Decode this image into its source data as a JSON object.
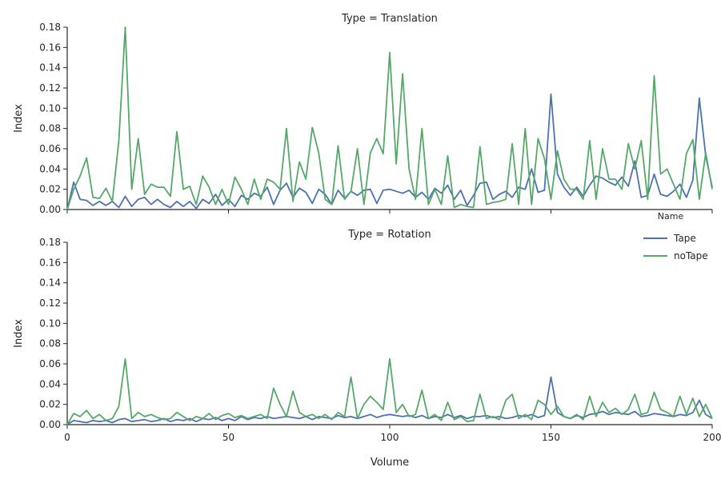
{
  "chart_data": {
    "type": "line",
    "xlabel": "Volume",
    "ylabel": "Index",
    "xlim": [
      0,
      200
    ],
    "ylim": [
      0,
      0.18
    ],
    "xticks": [
      "0",
      "50",
      "100",
      "150",
      "200"
    ],
    "yticks": [
      "0.00",
      "0.02",
      "0.04",
      "0.06",
      "0.08",
      "0.10",
      "0.12",
      "0.14",
      "0.16",
      "0.18"
    ],
    "legend": {
      "title": "Name",
      "placement": "right",
      "entries": [
        "Tape",
        "noTape"
      ]
    },
    "colors": {
      "Tape": "#4c72b0",
      "noTape": "#55a868"
    },
    "x": [
      0,
      2,
      4,
      6,
      8,
      10,
      12,
      14,
      16,
      18,
      20,
      22,
      24,
      26,
      28,
      30,
      32,
      34,
      36,
      38,
      40,
      42,
      44,
      46,
      48,
      50,
      52,
      54,
      56,
      58,
      60,
      62,
      64,
      66,
      68,
      70,
      72,
      74,
      76,
      78,
      80,
      82,
      84,
      86,
      88,
      90,
      92,
      94,
      96,
      98,
      100,
      102,
      104,
      106,
      108,
      110,
      112,
      114,
      116,
      118,
      120,
      122,
      124,
      126,
      128,
      130,
      132,
      134,
      136,
      138,
      140,
      142,
      144,
      146,
      148,
      150,
      152,
      154,
      156,
      158,
      160,
      162,
      164,
      166,
      168,
      170,
      172,
      174,
      176,
      178,
      180,
      182,
      184,
      186,
      188,
      190,
      192,
      194,
      196,
      198,
      200
    ],
    "panels": [
      {
        "title": "Type = Translation",
        "series": [
          {
            "name": "Tape",
            "values": [
              0.0,
              0.027,
              0.01,
              0.009,
              0.004,
              0.008,
              0.004,
              0.008,
              0.002,
              0.013,
              0.003,
              0.01,
              0.012,
              0.005,
              0.01,
              0.005,
              0.002,
              0.008,
              0.003,
              0.008,
              0.001,
              0.01,
              0.006,
              0.015,
              0.004,
              0.01,
              0.003,
              0.014,
              0.01,
              0.016,
              0.013,
              0.022,
              0.005,
              0.019,
              0.026,
              0.012,
              0.021,
              0.017,
              0.006,
              0.02,
              0.015,
              0.005,
              0.019,
              0.011,
              0.018,
              0.014,
              0.019,
              0.02,
              0.006,
              0.019,
              0.02,
              0.018,
              0.016,
              0.019,
              0.012,
              0.017,
              0.01,
              0.021,
              0.016,
              0.024,
              0.01,
              0.019,
              0.004,
              0.014,
              0.026,
              0.027,
              0.01,
              0.015,
              0.018,
              0.012,
              0.022,
              0.02,
              0.04,
              0.017,
              0.019,
              0.114,
              0.035,
              0.022,
              0.014,
              0.022,
              0.013,
              0.024,
              0.033,
              0.031,
              0.027,
              0.024,
              0.032,
              0.023,
              0.048,
              0.012,
              0.014,
              0.035,
              0.015,
              0.013,
              0.018,
              0.025,
              0.012,
              0.029,
              0.11,
              0.053,
              0.022
            ]
          },
          {
            "name": "noTape",
            "values": [
              0.0,
              0.02,
              0.033,
              0.051,
              0.012,
              0.011,
              0.021,
              0.008,
              0.068,
              0.18,
              0.02,
              0.07,
              0.015,
              0.025,
              0.022,
              0.022,
              0.013,
              0.077,
              0.02,
              0.023,
              0.005,
              0.033,
              0.022,
              0.005,
              0.02,
              0.005,
              0.032,
              0.02,
              0.005,
              0.03,
              0.01,
              0.03,
              0.027,
              0.02,
              0.08,
              0.008,
              0.047,
              0.03,
              0.081,
              0.056,
              0.01,
              0.005,
              0.063,
              0.01,
              0.018,
              0.06,
              0.005,
              0.056,
              0.07,
              0.055,
              0.155,
              0.045,
              0.134,
              0.04,
              0.01,
              0.08,
              0.005,
              0.02,
              0.005,
              0.053,
              0.002,
              0.005,
              0.003,
              0.002,
              0.062,
              0.005,
              0.007,
              0.008,
              0.01,
              0.065,
              0.005,
              0.08,
              0.005,
              0.07,
              0.05,
              0.01,
              0.058,
              0.03,
              0.02,
              0.02,
              0.01,
              0.068,
              0.01,
              0.06,
              0.03,
              0.03,
              0.02,
              0.065,
              0.04,
              0.068,
              0.01,
              0.132,
              0.035,
              0.04,
              0.025,
              0.01,
              0.055,
              0.069,
              0.01,
              0.056,
              0.02
            ]
          }
        ]
      },
      {
        "title": "Type = Rotation",
        "series": [
          {
            "name": "Tape",
            "values": [
              0.0,
              0.004,
              0.003,
              0.002,
              0.004,
              0.003,
              0.004,
              0.002,
              0.005,
              0.006,
              0.003,
              0.004,
              0.005,
              0.003,
              0.004,
              0.006,
              0.003,
              0.005,
              0.004,
              0.006,
              0.003,
              0.006,
              0.005,
              0.007,
              0.004,
              0.006,
              0.004,
              0.008,
              0.005,
              0.007,
              0.006,
              0.008,
              0.006,
              0.007,
              0.008,
              0.007,
              0.006,
              0.008,
              0.005,
              0.008,
              0.007,
              0.006,
              0.009,
              0.007,
              0.008,
              0.006,
              0.008,
              0.01,
              0.007,
              0.009,
              0.01,
              0.009,
              0.008,
              0.009,
              0.007,
              0.009,
              0.006,
              0.008,
              0.007,
              0.01,
              0.007,
              0.009,
              0.006,
              0.008,
              0.008,
              0.009,
              0.007,
              0.008,
              0.006,
              0.007,
              0.009,
              0.008,
              0.01,
              0.007,
              0.009,
              0.047,
              0.012,
              0.008,
              0.006,
              0.009,
              0.007,
              0.01,
              0.011,
              0.013,
              0.01,
              0.012,
              0.011,
              0.01,
              0.013,
              0.008,
              0.009,
              0.011,
              0.01,
              0.009,
              0.008,
              0.01,
              0.009,
              0.012,
              0.024,
              0.01,
              0.006
            ]
          },
          {
            "name": "noTape",
            "values": [
              0.0,
              0.011,
              0.008,
              0.014,
              0.006,
              0.01,
              0.004,
              0.006,
              0.018,
              0.065,
              0.006,
              0.012,
              0.008,
              0.01,
              0.007,
              0.005,
              0.006,
              0.012,
              0.008,
              0.004,
              0.008,
              0.006,
              0.011,
              0.005,
              0.009,
              0.011,
              0.007,
              0.009,
              0.006,
              0.008,
              0.01,
              0.006,
              0.036,
              0.02,
              0.008,
              0.033,
              0.012,
              0.008,
              0.01,
              0.006,
              0.01,
              0.005,
              0.012,
              0.008,
              0.047,
              0.006,
              0.02,
              0.028,
              0.022,
              0.015,
              0.065,
              0.012,
              0.02,
              0.008,
              0.01,
              0.034,
              0.006,
              0.01,
              0.004,
              0.022,
              0.005,
              0.008,
              0.003,
              0.004,
              0.03,
              0.006,
              0.008,
              0.005,
              0.024,
              0.03,
              0.006,
              0.01,
              0.005,
              0.024,
              0.02,
              0.01,
              0.018,
              0.008,
              0.006,
              0.01,
              0.005,
              0.028,
              0.008,
              0.022,
              0.012,
              0.016,
              0.01,
              0.015,
              0.03,
              0.01,
              0.012,
              0.032,
              0.015,
              0.012,
              0.008,
              0.028,
              0.01,
              0.026,
              0.008,
              0.02,
              0.006
            ]
          }
        ]
      }
    ]
  }
}
